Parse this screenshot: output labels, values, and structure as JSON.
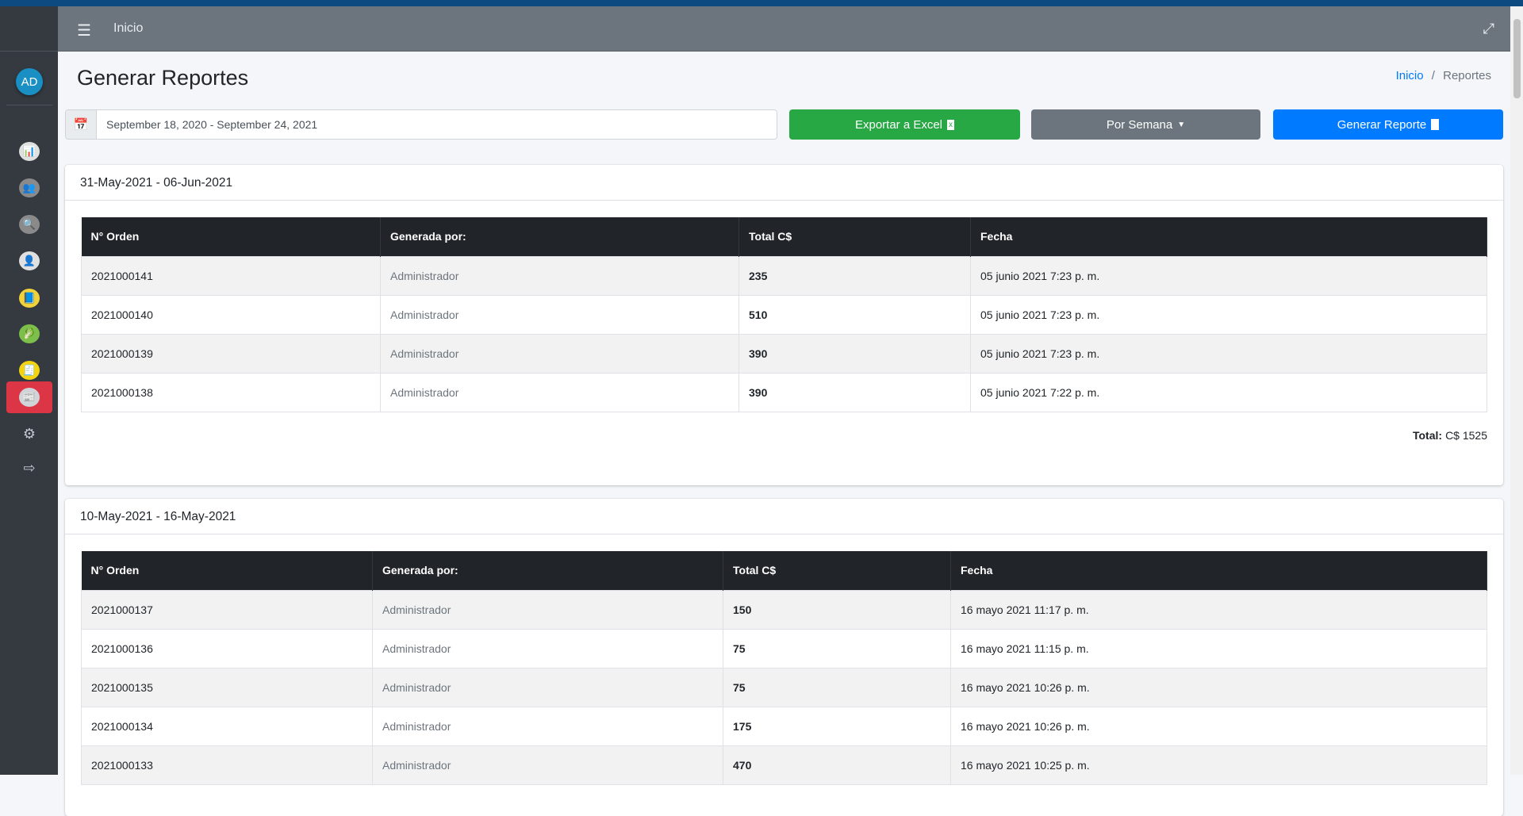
{
  "header": {
    "menu_icon": "hamburger-icon",
    "nav_link": "Inicio",
    "fullscreen_icon": "expand-icon"
  },
  "sidebar": {
    "avatar": "AD",
    "items": [
      {
        "icon": "chart-icon",
        "active": false
      },
      {
        "icon": "users-group-icon",
        "active": false
      },
      {
        "icon": "monitor-search-icon",
        "active": false
      },
      {
        "icon": "user-lock-icon",
        "active": false
      },
      {
        "icon": "menu-book-icon",
        "active": false
      },
      {
        "icon": "vegetables-icon",
        "active": false
      },
      {
        "icon": "sales-money-icon",
        "active": false
      },
      {
        "icon": "report-calculator-icon",
        "active": true
      },
      {
        "icon": "cogs-icon",
        "active": false
      },
      {
        "icon": "logout-icon",
        "active": false
      }
    ]
  },
  "page": {
    "title": "Generar Reportes",
    "breadcrumb": {
      "home": "Inicio",
      "sep": "/",
      "current": "Reportes"
    }
  },
  "toolbar": {
    "date_range": "September 18, 2020 - September 24, 2021",
    "export": "Exportar a Excel",
    "period": "Por Semana",
    "generate": "Generar Reporte",
    "colors": {
      "export": "#28a745",
      "period": "#6c757d",
      "generate": "#007bff"
    }
  },
  "columns": [
    "N° Orden",
    "Generada por:",
    "Total C$",
    "Fecha"
  ],
  "reports": [
    {
      "range": "31-May-2021 - 06-Jun-2021",
      "rows": [
        [
          "2021000141",
          "Administrador",
          "235",
          "05 junio 2021 7:23 p. m."
        ],
        [
          "2021000140",
          "Administrador",
          "510",
          "05 junio 2021 7:23 p. m."
        ],
        [
          "2021000139",
          "Administrador",
          "390",
          "05 junio 2021 7:23 p. m."
        ],
        [
          "2021000138",
          "Administrador",
          "390",
          "05 junio 2021 7:22 p. m."
        ]
      ],
      "total_label": "Total:",
      "total_value": "C$ 1525"
    },
    {
      "range": "10-May-2021 - 16-May-2021",
      "rows": [
        [
          "2021000137",
          "Administrador",
          "150",
          "16 mayo 2021 11:17 p. m."
        ],
        [
          "2021000136",
          "Administrador",
          "75",
          "16 mayo 2021 11:15 p. m."
        ],
        [
          "2021000135",
          "Administrador",
          "75",
          "16 mayo 2021 10:26 p. m."
        ],
        [
          "2021000134",
          "Administrador",
          "175",
          "16 mayo 2021 10:26 p. m."
        ],
        [
          "2021000133",
          "Administrador",
          "470",
          "16 mayo 2021 10:25 p. m."
        ]
      ]
    }
  ]
}
